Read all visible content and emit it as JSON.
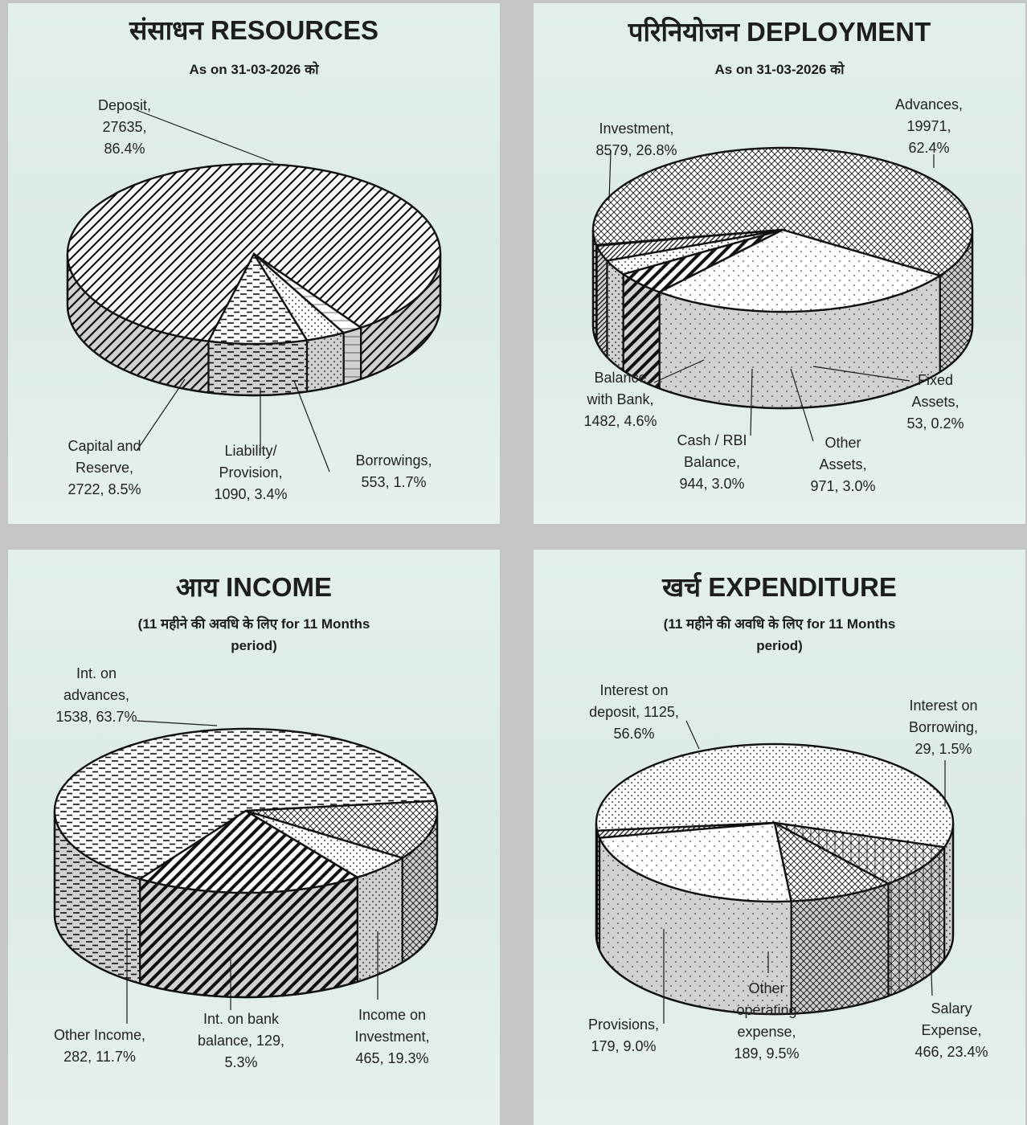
{
  "charts": [
    {
      "id": "resources",
      "title": "संसाधन  RESOURCES",
      "subtitle": [
        "As on 31-03-2026 को"
      ],
      "chart_data": {
        "type": "pie",
        "title": "संसाधन RESOURCES",
        "slices": [
          {
            "name": "Deposit",
            "value": 27635,
            "percent": 86.4,
            "label": [
              "Deposit,",
              "27635,",
              "86.4%"
            ],
            "pattern": "diag-wide"
          },
          {
            "name": "Capital and Reserve",
            "value": 2722,
            "percent": 8.5,
            "label": [
              "Capital and",
              "Reserve,",
              "2722, 8.5%"
            ],
            "pattern": "dash"
          },
          {
            "name": "Liability/ Provision",
            "value": 1090,
            "percent": 3.4,
            "label": [
              "Liability/",
              "Provision,",
              "1090, 3.4%"
            ],
            "pattern": "dots"
          },
          {
            "name": "Borrowings",
            "value": 553,
            "percent": 1.7,
            "label": [
              "Borrowings,",
              "553, 1.7%"
            ],
            "pattern": "plain"
          }
        ]
      }
    },
    {
      "id": "deployment",
      "title": "परिनियोजन  DEPLOYMENT",
      "subtitle": [
        "As on 31-03-2026 को"
      ],
      "chart_data": {
        "type": "pie",
        "title": "परिनियोजन DEPLOYMENT",
        "slices": [
          {
            "name": "Advances",
            "value": 19971,
            "percent": 62.4,
            "label": [
              "Advances,",
              "19971,",
              "62.4%"
            ],
            "pattern": "cross"
          },
          {
            "name": "Fixed Assets",
            "value": 53,
            "percent": 0.2,
            "label": [
              "Fixed",
              "Assets,",
              "53, 0.2%"
            ],
            "pattern": "plain"
          },
          {
            "name": "Other Assets",
            "value": 971,
            "percent": 3.0,
            "label": [
              "Other",
              "Assets,",
              "971, 3.0%"
            ],
            "pattern": "diag-narrow"
          },
          {
            "name": "Cash / RBI Balance",
            "value": 944,
            "percent": 3.0,
            "label": [
              "Cash / RBI",
              "Balance,",
              "944, 3.0%"
            ],
            "pattern": "dots"
          },
          {
            "name": "Balance with Bank",
            "value": 1482,
            "percent": 4.6,
            "label": [
              "Balance",
              "with Bank,",
              "1482, 4.6%"
            ],
            "pattern": "diag-bold"
          },
          {
            "name": "Investment",
            "value": 8579,
            "percent": 26.8,
            "label": [
              "Investment,",
              "8579, 26.8%"
            ],
            "pattern": "dots-sparse"
          }
        ]
      }
    },
    {
      "id": "income",
      "title": "आय  INCOME",
      "subtitle": [
        "(11  महीने  की  अवधि  के  लिए  for 11 Months",
        "period)"
      ],
      "chart_data": {
        "type": "pie",
        "title": "आय INCOME",
        "slices": [
          {
            "name": "Int. on advances",
            "value": 1538,
            "percent": 63.7,
            "label": [
              "Int. on",
              "advances,",
              "1538, 63.7%"
            ],
            "pattern": "dash"
          },
          {
            "name": "Income on Investment",
            "value": 465,
            "percent": 19.3,
            "label": [
              "Income on",
              "Investment,",
              "465, 19.3%"
            ],
            "pattern": "diag-bold"
          },
          {
            "name": "Int. on bank balance",
            "value": 129,
            "percent": 5.3,
            "label": [
              "Int. on bank",
              "balance, 129,",
              "5.3%"
            ],
            "pattern": "dots"
          },
          {
            "name": "Other Income",
            "value": 282,
            "percent": 11.7,
            "label": [
              "Other Income,",
              "282, 11.7%"
            ],
            "pattern": "cross"
          }
        ]
      }
    },
    {
      "id": "expenditure",
      "title": "खर्च  EXPENDITURE",
      "subtitle": [
        "(11  महीने  की  अवधि  के  लिए  for 11 Months",
        "period)"
      ],
      "chart_data": {
        "type": "pie",
        "title": "खर्च EXPENDITURE",
        "slices": [
          {
            "name": "Interest on deposit",
            "value": 1125,
            "percent": 56.6,
            "label": [
              "Interest on",
              "deposit, 1125,",
              "56.6%"
            ],
            "pattern": "dots"
          },
          {
            "name": "Interest on Borrowing",
            "value": 29,
            "percent": 1.5,
            "label": [
              "Interest on",
              "Borrowing,",
              "29, 1.5%"
            ],
            "pattern": "diag-narrow"
          },
          {
            "name": "Salary Expense",
            "value": 466,
            "percent": 23.4,
            "label": [
              "Salary",
              "Expense,",
              "466, 23.4%"
            ],
            "pattern": "dots-sparse"
          },
          {
            "name": "Other operating expense",
            "value": 189,
            "percent": 9.5,
            "label": [
              "Other",
              "operating",
              "expense,",
              "189, 9.5%"
            ],
            "pattern": "cross"
          },
          {
            "name": "Provisions",
            "value": 179,
            "percent": 9.0,
            "label": [
              "Provisions,",
              "179, 9.0%"
            ],
            "pattern": "grid"
          }
        ]
      }
    }
  ],
  "colors": {
    "divider": "#c6c6c6",
    "panel_bg": "#e3f0ea",
    "ink": "#111111"
  }
}
